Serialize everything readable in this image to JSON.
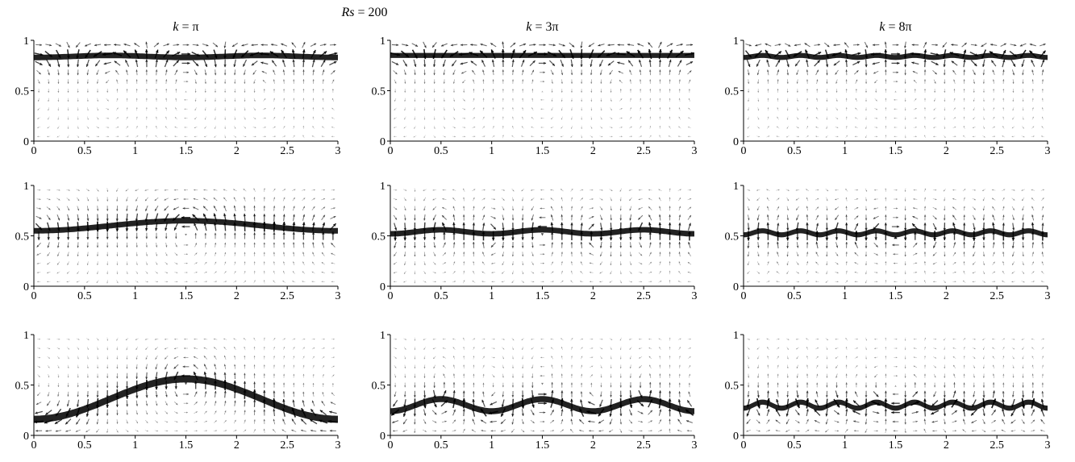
{
  "figure": {
    "suptitle_italic": "Rs",
    "suptitle_rest": " = 200",
    "column_titles": [
      {
        "italic": "k",
        "rest": " = π"
      },
      {
        "italic": "k",
        "rest": " = 3π"
      },
      {
        "italic": "k",
        "rest": " = 8π"
      }
    ]
  },
  "chart_data": {
    "type": "quiver",
    "title": "Rs = 200",
    "xlim": [
      0,
      3
    ],
    "ylim": [
      0,
      1
    ],
    "xticks": [
      "0",
      "0.5",
      "1",
      "1.5",
      "2",
      "2.5",
      "3"
    ],
    "yticks": [
      "0",
      "0.5",
      "1"
    ],
    "grid": false,
    "panels": [
      {
        "row": 0,
        "col": 0,
        "k": "π",
        "interface_mean": 0.84,
        "amplitude": 0.01,
        "wavenumber": 2,
        "band": 0.055
      },
      {
        "row": 0,
        "col": 1,
        "k": "3π",
        "interface_mean": 0.85,
        "amplitude": 0.0,
        "wavenumber": 0,
        "band": 0.05
      },
      {
        "row": 0,
        "col": 2,
        "k": "8π",
        "interface_mean": 0.84,
        "amplitude": 0.01,
        "wavenumber": 8,
        "band": 0.05
      },
      {
        "row": 1,
        "col": 0,
        "k": "π",
        "interface_mean": 0.6,
        "amplitude": 0.05,
        "wavenumber": 1,
        "band": 0.055
      },
      {
        "row": 1,
        "col": 1,
        "k": "3π",
        "interface_mean": 0.54,
        "amplitude": 0.02,
        "wavenumber": 3,
        "band": 0.055
      },
      {
        "row": 1,
        "col": 2,
        "k": "8π",
        "interface_mean": 0.53,
        "amplitude": 0.02,
        "wavenumber": 8,
        "band": 0.05
      },
      {
        "row": 2,
        "col": 0,
        "k": "π",
        "interface_mean": 0.36,
        "amplitude": 0.2,
        "wavenumber": 1,
        "band": 0.07
      },
      {
        "row": 2,
        "col": 1,
        "k": "3π",
        "interface_mean": 0.3,
        "amplitude": 0.06,
        "wavenumber": 3,
        "band": 0.06
      },
      {
        "row": 2,
        "col": 2,
        "k": "8π",
        "interface_mean": 0.3,
        "amplitude": 0.03,
        "wavenumber": 8,
        "band": 0.05
      }
    ]
  }
}
